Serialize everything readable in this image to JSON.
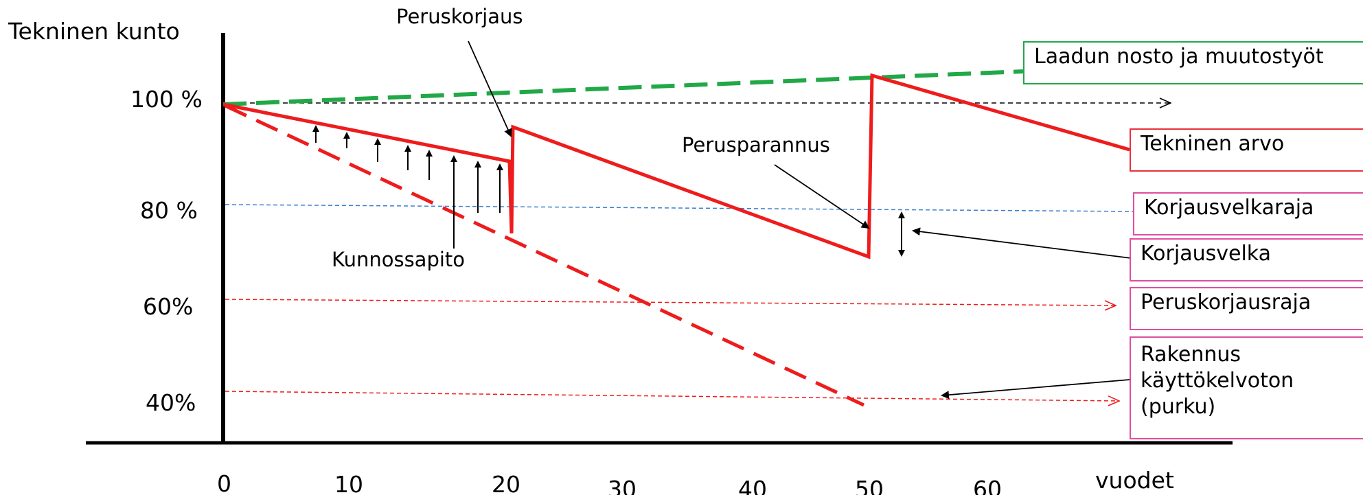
{
  "axis": {
    "y_title": "Tekninen kunto",
    "y_ticks": [
      "100 %",
      "80 %",
      "60%",
      "40%"
    ],
    "x_ticks": [
      "0",
      "10",
      "20",
      "30",
      "40",
      "50",
      "60"
    ],
    "x_title": "vuodet"
  },
  "annotations": {
    "peruskorjaus": "Peruskorjaus",
    "perusparannus": "Perusparannus",
    "kunnossapito": "Kunnossapito"
  },
  "boxes": {
    "laadun_nosto": "Laadun nosto ja muutostyöt",
    "tekninen_arvo": "Tekninen arvo",
    "korjausvelkaraja": "Korjausvelkaraja",
    "korjausvelka": "Korjausvelka",
    "peruskorjausraja": "Peruskorjausraja",
    "kayttokelvoton": [
      "Rakennus",
      "käyttökelvoton",
      "(purku)"
    ]
  },
  "colors": {
    "red": "#ee1c1c",
    "green": "#21a847",
    "blue": "#3b7fd0",
    "box_green": "#21a847",
    "box_red": "#e8303a",
    "box_pink": "#e04da0"
  }
}
